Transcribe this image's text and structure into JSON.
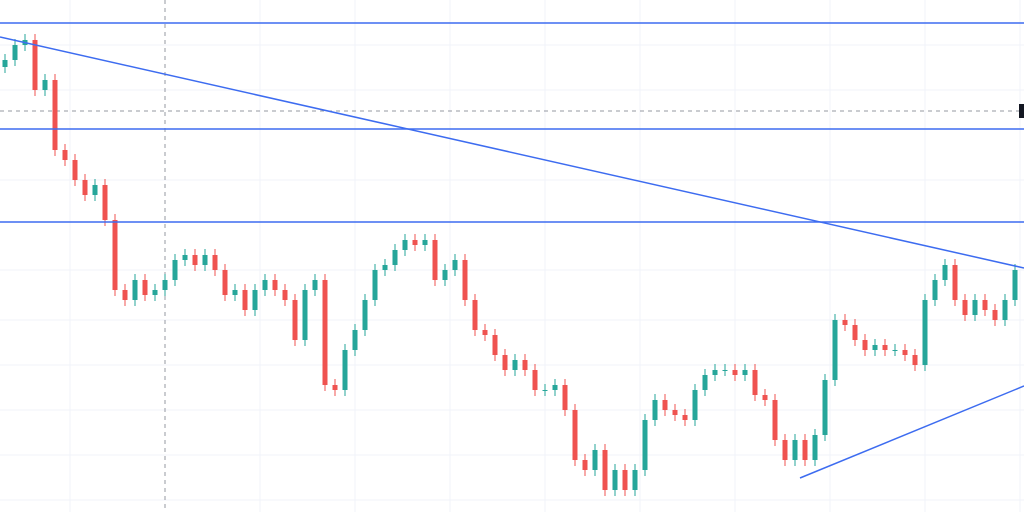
{
  "chart_data": {
    "type": "candlestick",
    "xlim": [
      -0.5,
      101.9
    ],
    "ylim": [
      0,
      512
    ],
    "up_color": "#26a69a",
    "down_color": "#ef5350",
    "line_color": "#3d6cf0",
    "open": [
      445,
      452,
      467,
      472,
      422,
      432,
      362,
      352,
      332,
      317,
      327,
      292,
      222,
      212,
      232,
      217,
      222,
      232,
      252,
      257,
      247,
      257,
      242,
      217,
      222,
      202,
      222,
      232,
      222,
      212,
      172,
      222,
      232,
      127,
      122,
      162,
      182,
      212,
      242,
      247,
      262,
      272,
      267,
      272,
      232,
      242,
      252,
      212,
      182,
      177,
      157,
      142,
      152,
      142,
      122,
      122,
      127,
      102,
      52,
      42,
      62,
      22,
      42,
      22,
      42,
      92,
      112,
      102,
      97,
      92,
      122,
      137,
      142,
      142,
      137,
      142,
      117,
      112,
      72,
      52,
      72,
      52,
      77,
      132,
      192,
      187,
      172,
      162,
      167,
      162,
      162,
      157,
      147,
      212,
      232,
      247,
      212,
      197,
      212,
      202,
      192,
      212
    ],
    "high": [
      458,
      473,
      478,
      478,
      438,
      438,
      368,
      358,
      338,
      333,
      333,
      298,
      228,
      238,
      238,
      228,
      238,
      258,
      263,
      263,
      263,
      263,
      248,
      228,
      228,
      228,
      238,
      238,
      228,
      218,
      228,
      238,
      238,
      133,
      168,
      188,
      218,
      248,
      253,
      268,
      278,
      278,
      278,
      278,
      248,
      258,
      258,
      218,
      188,
      183,
      163,
      158,
      158,
      148,
      128,
      133,
      133,
      108,
      58,
      68,
      68,
      48,
      48,
      48,
      98,
      118,
      118,
      108,
      103,
      128,
      143,
      148,
      148,
      148,
      148,
      148,
      123,
      118,
      78,
      78,
      78,
      83,
      138,
      198,
      198,
      193,
      178,
      173,
      173,
      168,
      168,
      163,
      218,
      238,
      253,
      253,
      218,
      218,
      218,
      208,
      218,
      248
    ],
    "low": [
      439,
      446,
      461,
      416,
      416,
      356,
      346,
      326,
      311,
      311,
      286,
      216,
      206,
      206,
      211,
      211,
      216,
      226,
      246,
      241,
      241,
      236,
      211,
      211,
      196,
      196,
      216,
      216,
      206,
      166,
      166,
      216,
      121,
      116,
      116,
      156,
      176,
      206,
      236,
      241,
      256,
      261,
      261,
      226,
      226,
      236,
      206,
      176,
      171,
      151,
      136,
      136,
      136,
      116,
      116,
      116,
      96,
      46,
      36,
      36,
      16,
      16,
      16,
      16,
      36,
      86,
      96,
      91,
      86,
      86,
      116,
      131,
      136,
      131,
      131,
      111,
      106,
      66,
      46,
      46,
      46,
      46,
      71,
      126,
      181,
      166,
      156,
      156,
      156,
      156,
      151,
      141,
      141,
      206,
      226,
      206,
      191,
      191,
      196,
      186,
      186,
      206
    ],
    "close": [
      452,
      467,
      472,
      422,
      432,
      362,
      352,
      332,
      317,
      327,
      292,
      222,
      212,
      232,
      217,
      222,
      232,
      252,
      257,
      247,
      257,
      242,
      217,
      222,
      202,
      222,
      232,
      222,
      212,
      172,
      222,
      232,
      127,
      122,
      162,
      182,
      212,
      242,
      247,
      262,
      272,
      267,
      272,
      232,
      242,
      252,
      212,
      182,
      177,
      157,
      142,
      152,
      142,
      122,
      122,
      127,
      102,
      52,
      42,
      62,
      22,
      42,
      22,
      42,
      92,
      112,
      102,
      97,
      92,
      122,
      137,
      142,
      142,
      137,
      142,
      117,
      112,
      72,
      52,
      72,
      52,
      77,
      132,
      192,
      187,
      172,
      162,
      167,
      162,
      162,
      157,
      147,
      212,
      232,
      247,
      212,
      197,
      212,
      202,
      192,
      212,
      242
    ],
    "hlines": [
      489,
      383,
      290
    ],
    "trendlines": [
      {
        "start": [
          -0.5,
          475
        ],
        "end": [
          101.9,
          244
        ]
      },
      {
        "start": [
          79.5,
          34
        ],
        "end": [
          101.9,
          126
        ]
      }
    ]
  }
}
